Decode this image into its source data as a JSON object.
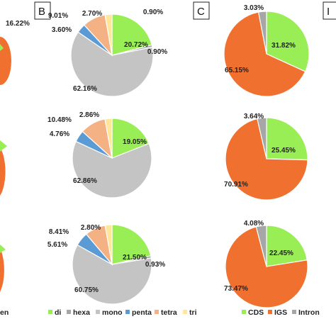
{
  "panels": {
    "left_partial_label": "16.22%",
    "left_partial_legend": "en",
    "B": "B",
    "C": "C",
    "D_partial": "I"
  },
  "colors": {
    "di": "#99ee55",
    "hexa": "#a6a6a6",
    "mono": "#c4c4c4",
    "penta": "#5b9bd5",
    "tetra": "#f4b183",
    "tri": "#ffe699",
    "CDS": "#99ee55",
    "IGS": "#f07030",
    "Intron": "#a6a6a6"
  },
  "chart_data": [
    {
      "type": "pie",
      "panel": "B",
      "categories": [
        "di",
        "hexa",
        "mono",
        "penta",
        "tetra",
        "tri"
      ],
      "values": [
        20.72,
        0.9,
        62.16,
        3.6,
        9.01,
        2.7
      ],
      "labels": [
        "20.72%",
        "0.90%",
        "62.16%",
        "3.60%",
        "9.01%",
        "2.70%"
      ],
      "extra_label": "0.90%"
    },
    {
      "type": "pie",
      "panel": "B",
      "categories": [
        "di",
        "hexa",
        "mono",
        "penta",
        "tetra",
        "tri"
      ],
      "values": [
        19.05,
        0,
        62.86,
        4.76,
        10.48,
        2.86
      ],
      "labels": [
        "19.05%",
        "",
        "62.86%",
        "4.76%",
        "10.48%",
        "2.86%"
      ]
    },
    {
      "type": "pie",
      "panel": "B",
      "categories": [
        "di",
        "hexa",
        "mono",
        "penta",
        "tetra",
        "tri"
      ],
      "values": [
        21.5,
        0.93,
        60.75,
        5.61,
        8.41,
        2.8
      ],
      "labels": [
        "21.50%",
        "0.93%",
        "60.75%",
        "5.61%",
        "8.41%",
        "2.80%"
      ]
    },
    {
      "type": "pie",
      "panel": "C",
      "categories": [
        "CDS",
        "IGS",
        "Intron"
      ],
      "values": [
        31.82,
        65.15,
        3.03
      ],
      "labels": [
        "31.82%",
        "65.15%",
        "3.03%"
      ]
    },
    {
      "type": "pie",
      "panel": "C",
      "categories": [
        "CDS",
        "IGS",
        "Intron"
      ],
      "values": [
        25.45,
        70.91,
        3.64
      ],
      "labels": [
        "25.45%",
        "70.91%",
        "3.64%"
      ]
    },
    {
      "type": "pie",
      "panel": "C",
      "categories": [
        "CDS",
        "IGS",
        "Intron"
      ],
      "values": [
        22.45,
        73.47,
        4.08
      ],
      "labels": [
        "22.45%",
        "73.47%",
        "4.08%"
      ]
    }
  ],
  "legend_B": [
    "di",
    "hexa",
    "mono",
    "penta",
    "tetra",
    "tri"
  ],
  "legend_C": [
    "CDS",
    "IGS",
    "Intron"
  ]
}
